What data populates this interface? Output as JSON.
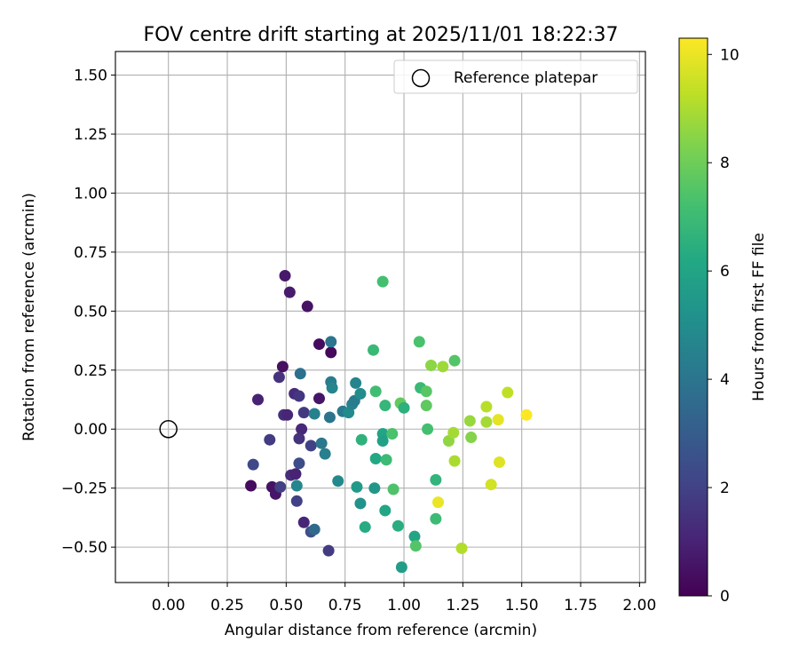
{
  "chart_data": {
    "type": "scatter",
    "title": "FOV centre drift starting at 2025/11/01 18:22:37",
    "xlabel": "Angular distance from reference (arcmin)",
    "ylabel": "Rotation from reference (arcmin)",
    "xlim": [
      -0.225,
      2.025
    ],
    "ylim": [
      -0.65,
      1.6
    ],
    "xticks": [
      "0.00",
      "0.25",
      "0.50",
      "0.75",
      "1.00",
      "1.25",
      "1.50",
      "1.75",
      "2.00"
    ],
    "xtick_values": [
      0,
      0.25,
      0.5,
      0.75,
      1.0,
      1.25,
      1.5,
      1.75,
      2.0
    ],
    "yticks": [
      "−0.50",
      "−0.25",
      "0.00",
      "0.25",
      "0.50",
      "0.75",
      "1.00",
      "1.25",
      "1.50"
    ],
    "ytick_values": [
      -0.5,
      -0.25,
      0,
      0.25,
      0.5,
      0.75,
      1.0,
      1.25,
      1.5
    ],
    "grid": true,
    "legend": {
      "position": "top-right",
      "label": "Reference platepar",
      "marker": "open-circle"
    },
    "reference_point": {
      "x": 0.0,
      "y": 0.0
    },
    "colorbar": {
      "label": "Hours from first FF file",
      "range": [
        0,
        10.3
      ],
      "ticks": [
        "0",
        "2",
        "4",
        "6",
        "8",
        "10"
      ],
      "tick_values": [
        0,
        2,
        4,
        6,
        8,
        10
      ],
      "colormap": "viridis"
    },
    "points": [
      {
        "x": 0.495,
        "y": 0.65,
        "c": 0.7
      },
      {
        "x": 0.515,
        "y": 0.58,
        "c": 0.8
      },
      {
        "x": 0.59,
        "y": 0.52,
        "c": 0.5
      },
      {
        "x": 0.64,
        "y": 0.36,
        "c": 0.3
      },
      {
        "x": 0.69,
        "y": 0.325,
        "c": 0.2
      },
      {
        "x": 0.485,
        "y": 0.265,
        "c": 0.4
      },
      {
        "x": 0.64,
        "y": 0.13,
        "c": 0.6
      },
      {
        "x": 0.47,
        "y": 0.22,
        "c": 1.5
      },
      {
        "x": 0.38,
        "y": 0.125,
        "c": 1.0
      },
      {
        "x": 0.535,
        "y": 0.15,
        "c": 1.3
      },
      {
        "x": 0.555,
        "y": 0.14,
        "c": 1.6
      },
      {
        "x": 0.49,
        "y": 0.06,
        "c": 1.4
      },
      {
        "x": 0.505,
        "y": 0.06,
        "c": 1.1
      },
      {
        "x": 0.575,
        "y": 0.07,
        "c": 1.7
      },
      {
        "x": 0.565,
        "y": 0.0,
        "c": 1.2
      },
      {
        "x": 0.555,
        "y": -0.04,
        "c": 1.5
      },
      {
        "x": 0.43,
        "y": -0.045,
        "c": 1.8
      },
      {
        "x": 0.605,
        "y": -0.07,
        "c": 2.0
      },
      {
        "x": 0.36,
        "y": -0.15,
        "c": 2.2
      },
      {
        "x": 0.52,
        "y": -0.195,
        "c": 1.3
      },
      {
        "x": 0.54,
        "y": -0.19,
        "c": 1.0
      },
      {
        "x": 0.555,
        "y": -0.145,
        "c": 2.4
      },
      {
        "x": 0.35,
        "y": -0.24,
        "c": 0.3
      },
      {
        "x": 0.44,
        "y": -0.245,
        "c": 0.5
      },
      {
        "x": 0.455,
        "y": -0.275,
        "c": 0.6
      },
      {
        "x": 0.475,
        "y": -0.245,
        "c": 1.9
      },
      {
        "x": 0.545,
        "y": -0.24,
        "c": 4.7
      },
      {
        "x": 0.545,
        "y": -0.305,
        "c": 2.0
      },
      {
        "x": 0.575,
        "y": -0.395,
        "c": 1.1
      },
      {
        "x": 0.605,
        "y": -0.435,
        "c": 2.5
      },
      {
        "x": 0.62,
        "y": -0.425,
        "c": 3.5
      },
      {
        "x": 0.68,
        "y": -0.515,
        "c": 1.8
      },
      {
        "x": 0.56,
        "y": 0.235,
        "c": 3.8
      },
      {
        "x": 0.69,
        "y": 0.37,
        "c": 4.0
      },
      {
        "x": 0.69,
        "y": 0.2,
        "c": 4.3
      },
      {
        "x": 0.695,
        "y": 0.175,
        "c": 4.6
      },
      {
        "x": 0.62,
        "y": 0.065,
        "c": 4.5
      },
      {
        "x": 0.685,
        "y": 0.05,
        "c": 3.9
      },
      {
        "x": 0.65,
        "y": -0.06,
        "c": 4.1
      },
      {
        "x": 0.665,
        "y": -0.105,
        "c": 4.4
      },
      {
        "x": 0.72,
        "y": -0.22,
        "c": 4.8
      },
      {
        "x": 0.74,
        "y": 0.075,
        "c": 4.2
      },
      {
        "x": 0.765,
        "y": 0.07,
        "c": 4.9
      },
      {
        "x": 0.78,
        "y": 0.105,
        "c": 4.5
      },
      {
        "x": 0.79,
        "y": 0.12,
        "c": 4.3
      },
      {
        "x": 0.795,
        "y": 0.195,
        "c": 4.6
      },
      {
        "x": 0.815,
        "y": 0.15,
        "c": 5.0
      },
      {
        "x": 0.8,
        "y": -0.245,
        "c": 5.6
      },
      {
        "x": 0.815,
        "y": -0.315,
        "c": 5.2
      },
      {
        "x": 0.82,
        "y": -0.045,
        "c": 6.6
      },
      {
        "x": 0.835,
        "y": -0.415,
        "c": 6.3
      },
      {
        "x": 0.87,
        "y": 0.335,
        "c": 6.9
      },
      {
        "x": 0.88,
        "y": 0.16,
        "c": 7.1
      },
      {
        "x": 0.88,
        "y": -0.125,
        "c": 6.2
      },
      {
        "x": 0.875,
        "y": -0.25,
        "c": 5.4
      },
      {
        "x": 0.91,
        "y": 0.625,
        "c": 7.2
      },
      {
        "x": 0.91,
        "y": -0.02,
        "c": 6.0
      },
      {
        "x": 0.91,
        "y": -0.05,
        "c": 5.8
      },
      {
        "x": 0.92,
        "y": 0.1,
        "c": 6.8
      },
      {
        "x": 0.925,
        "y": -0.13,
        "c": 7.0
      },
      {
        "x": 0.92,
        "y": -0.345,
        "c": 6.1
      },
      {
        "x": 0.95,
        "y": -0.02,
        "c": 7.3
      },
      {
        "x": 0.955,
        "y": -0.255,
        "c": 7.4
      },
      {
        "x": 0.975,
        "y": -0.41,
        "c": 6.4
      },
      {
        "x": 0.985,
        "y": 0.11,
        "c": 7.8
      },
      {
        "x": 1.0,
        "y": 0.09,
        "c": 6.5
      },
      {
        "x": 0.99,
        "y": -0.585,
        "c": 5.7
      },
      {
        "x": 1.045,
        "y": -0.455,
        "c": 6.0
      },
      {
        "x": 1.05,
        "y": -0.495,
        "c": 7.5
      },
      {
        "x": 1.065,
        "y": 0.37,
        "c": 7.3
      },
      {
        "x": 1.07,
        "y": 0.175,
        "c": 6.9
      },
      {
        "x": 1.095,
        "y": 0.16,
        "c": 7.6
      },
      {
        "x": 1.095,
        "y": 0.1,
        "c": 7.7
      },
      {
        "x": 1.1,
        "y": 0.0,
        "c": 7.2
      },
      {
        "x": 1.115,
        "y": 0.27,
        "c": 8.5
      },
      {
        "x": 1.135,
        "y": -0.215,
        "c": 6.7
      },
      {
        "x": 1.135,
        "y": -0.38,
        "c": 7.0
      },
      {
        "x": 1.145,
        "y": -0.31,
        "c": 10.0
      },
      {
        "x": 1.165,
        "y": 0.265,
        "c": 8.8
      },
      {
        "x": 1.19,
        "y": -0.05,
        "c": 8.6
      },
      {
        "x": 1.21,
        "y": -0.015,
        "c": 8.9
      },
      {
        "x": 1.215,
        "y": 0.29,
        "c": 7.5
      },
      {
        "x": 1.215,
        "y": -0.135,
        "c": 9.0
      },
      {
        "x": 1.245,
        "y": -0.505,
        "c": 9.1
      },
      {
        "x": 1.28,
        "y": 0.035,
        "c": 8.7
      },
      {
        "x": 1.285,
        "y": -0.035,
        "c": 8.4
      },
      {
        "x": 1.35,
        "y": 0.095,
        "c": 9.2
      },
      {
        "x": 1.35,
        "y": 0.03,
        "c": 8.9
      },
      {
        "x": 1.37,
        "y": -0.235,
        "c": 9.6
      },
      {
        "x": 1.4,
        "y": 0.04,
        "c": 9.9
      },
      {
        "x": 1.405,
        "y": -0.14,
        "c": 9.8
      },
      {
        "x": 1.44,
        "y": 0.155,
        "c": 9.3
      },
      {
        "x": 1.52,
        "y": 0.06,
        "c": 10.3
      }
    ]
  }
}
